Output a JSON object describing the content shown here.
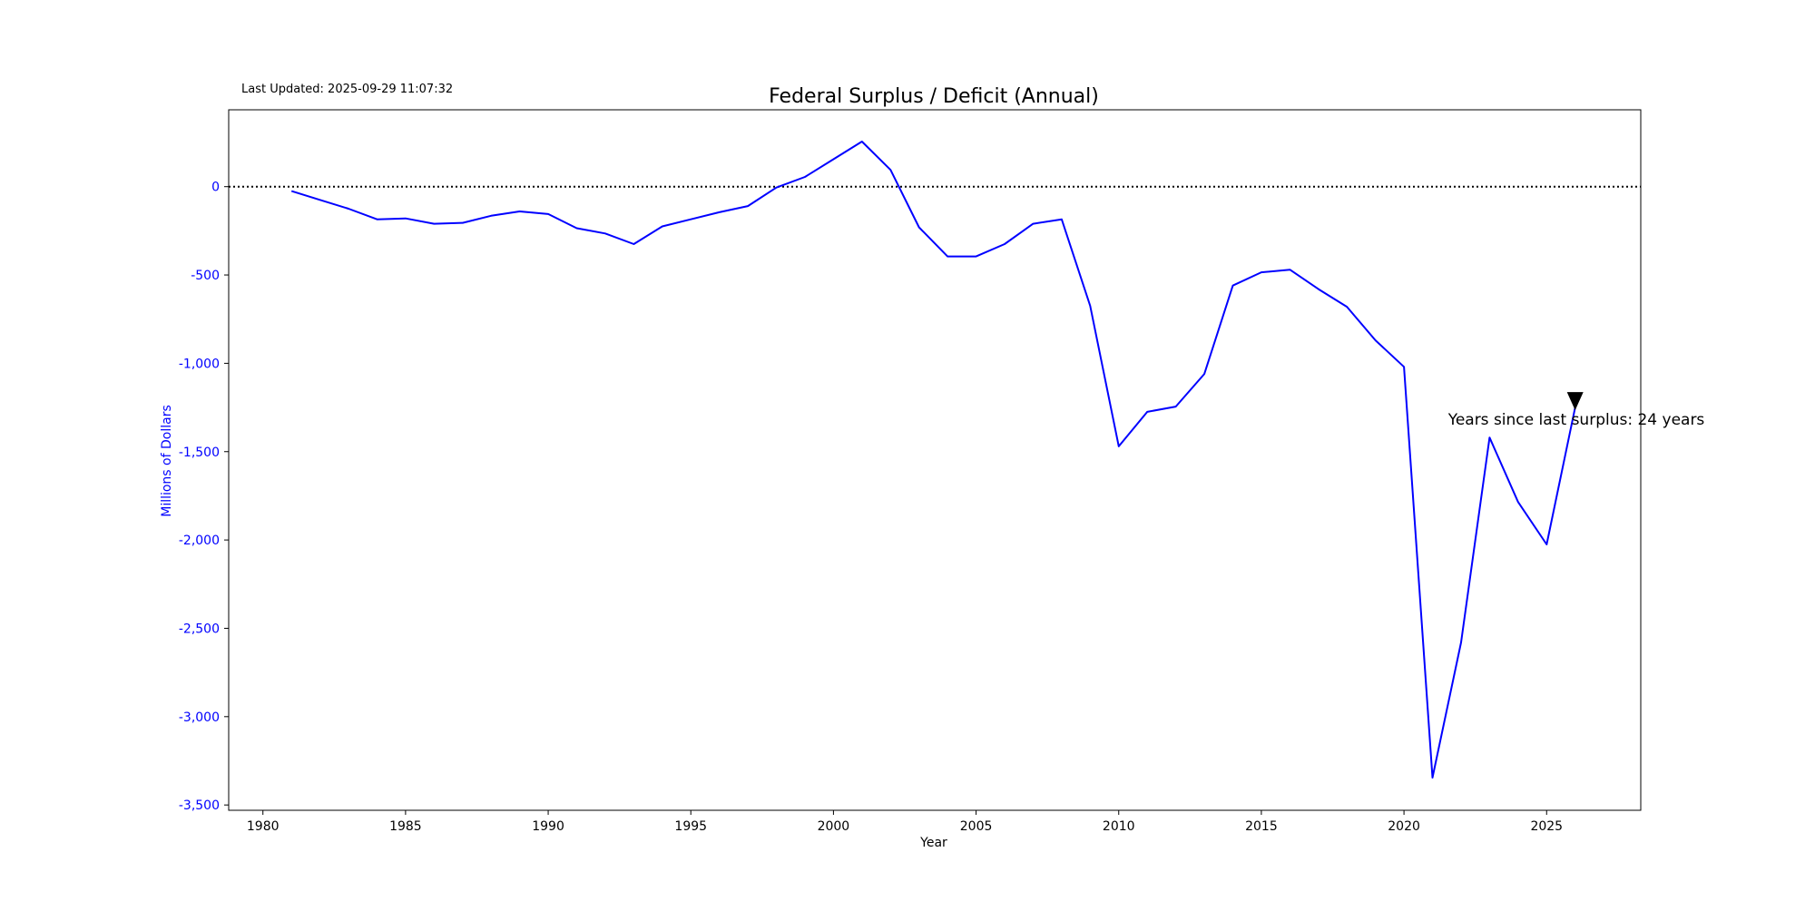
{
  "chart_data": {
    "type": "line",
    "title": "Federal Surplus / Deficit (Annual)",
    "timestamp": "Last Updated: 2025-09-29 11:07:32",
    "xlabel": "Year",
    "ylabel": "Millions of Dollars",
    "xlim": [
      1978.8,
      2028.3
    ],
    "ylim": [
      -3530,
      435
    ],
    "x_ticks": [
      1980,
      1985,
      1990,
      1995,
      2000,
      2005,
      2010,
      2015,
      2020,
      2025
    ],
    "y_ticks": [
      0,
      -500,
      -1000,
      -1500,
      -2000,
      -2500,
      -3000,
      -3500
    ],
    "y_tick_labels": [
      "0",
      "-500",
      "-1,000",
      "-1,500",
      "-2,000",
      "-2,500",
      "-3,000",
      "-3,500"
    ],
    "grid": false,
    "reference_line": {
      "y": 0,
      "style": "dotted",
      "color": "#000000"
    },
    "series": [
      {
        "color": "#0000ff",
        "x": [
          1981,
          1982,
          1983,
          1984,
          1985,
          1986,
          1987,
          1988,
          1989,
          1990,
          1991,
          1992,
          1993,
          1994,
          1995,
          1996,
          1997,
          1998,
          1999,
          2000,
          2001,
          2002,
          2003,
          2004,
          2005,
          2006,
          2007,
          2008,
          2009,
          2010,
          2011,
          2012,
          2013,
          2014,
          2015,
          2016,
          2017,
          2018,
          2019,
          2020,
          2021,
          2022,
          2023,
          2024,
          2025,
          2026
        ],
        "values": [
          -25,
          -75,
          -125,
          -185,
          -180,
          -210,
          -205,
          -165,
          -140,
          -155,
          -235,
          -265,
          -325,
          -225,
          -185,
          -145,
          -110,
          -5,
          55,
          155,
          255,
          95,
          -230,
          -395,
          -395,
          -325,
          -210,
          -185,
          -675,
          -1470,
          -1275,
          -1245,
          -1060,
          -560,
          -485,
          -470,
          -580,
          -680,
          -870,
          -1020,
          -3345,
          -2580,
          -1420,
          -1785,
          -2025,
          -1250
        ]
      }
    ],
    "annotation": {
      "text": "Years since last surplus: 24 years",
      "marker_x": 2026,
      "marker_y": -1250,
      "marker_color": "#000000"
    }
  }
}
